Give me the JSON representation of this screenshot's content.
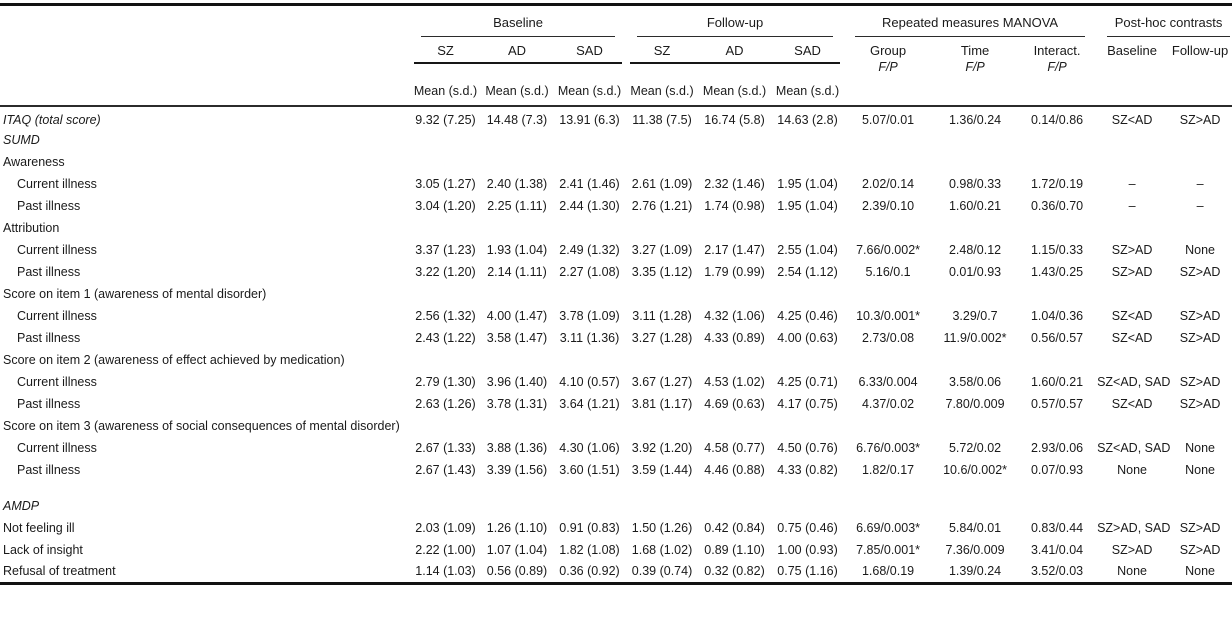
{
  "table": {
    "header": {
      "group_baseline": "Baseline",
      "group_followup": "Follow-up",
      "group_manova": "Repeated measures MANOVA",
      "group_posthoc": "Post-hoc contrasts",
      "baseline_cols": [
        "SZ",
        "AD",
        "SAD"
      ],
      "followup_cols": [
        "SZ",
        "AD",
        "SAD"
      ],
      "manova_cols": [
        "Group",
        "Time",
        "Interact."
      ],
      "manova_sub": "F/P",
      "posthoc_cols": [
        "Baseline",
        "Follow-up"
      ],
      "mean_sd": "Mean (s.d.)"
    },
    "rows": [
      {
        "label": "ITAQ (total score)",
        "italic": true,
        "cells": [
          "9.32 (7.25)",
          "14.48 (7.3)",
          "13.91 (6.3)",
          "11.38 (7.5)",
          "16.74 (5.8)",
          "14.63 (2.8)",
          "5.07/0.01",
          "1.36/0.24",
          "0.14/0.86",
          "SZ<AD",
          "SZ>AD"
        ]
      },
      {
        "label": "SUMD",
        "italic": true,
        "cells": []
      },
      {
        "label": "Awareness",
        "cells": []
      },
      {
        "label": "Current illness",
        "indent": true,
        "cells": [
          "3.05 (1.27)",
          "2.40 (1.38)",
          "2.41 (1.46)",
          "2.61 (1.09)",
          "2.32 (1.46)",
          "1.95 (1.04)",
          "2.02/0.14",
          "0.98/0.33",
          "1.72/0.19",
          "–",
          "–"
        ]
      },
      {
        "label": "Past illness",
        "indent": true,
        "cells": [
          "3.04 (1.20)",
          "2.25 (1.11)",
          "2.44 (1.30)",
          "2.76 (1.21)",
          "1.74 (0.98)",
          "1.95 (1.04)",
          "2.39/0.10",
          "1.60/0.21",
          "0.36/0.70",
          "–",
          "–"
        ]
      },
      {
        "label": "Attribution",
        "cells": []
      },
      {
        "label": "Current illness",
        "indent": true,
        "cells": [
          "3.37 (1.23)",
          "1.93 (1.04)",
          "2.49 (1.32)",
          "3.27 (1.09)",
          "2.17 (1.47)",
          "2.55 (1.04)",
          "7.66/0.002*",
          "2.48/0.12",
          "1.15/0.33",
          "SZ>AD",
          "None"
        ]
      },
      {
        "label": "Past illness",
        "indent": true,
        "cells": [
          "3.22 (1.20)",
          "2.14 (1.11)",
          "2.27 (1.08)",
          "3.35 (1.12)",
          "1.79 (0.99)",
          "2.54 (1.12)",
          "5.16/0.1",
          "0.01/0.93",
          "1.43/0.25",
          "SZ>AD",
          "SZ>AD"
        ]
      },
      {
        "label": "Score on item 1 (awareness of mental disorder)",
        "cells": []
      },
      {
        "label": "Current illness",
        "indent": true,
        "cells": [
          "2.56 (1.32)",
          "4.00 (1.47)",
          "3.78 (1.09)",
          "3.11 (1.28)",
          "4.32 (1.06)",
          "4.25 (0.46)",
          "10.3/0.001*",
          "3.29/0.7",
          "1.04/0.36",
          "SZ<AD",
          "SZ>AD"
        ]
      },
      {
        "label": "Past illness",
        "indent": true,
        "cells": [
          "2.43 (1.22)",
          "3.58 (1.47)",
          "3.11 (1.36)",
          "3.27 (1.28)",
          "4.33 (0.89)",
          "4.00 (0.63)",
          "2.73/0.08",
          "11.9/0.002*",
          "0.56/0.57",
          "SZ<AD",
          "SZ>AD"
        ]
      },
      {
        "label": "Score on item 2 (awareness of effect achieved by medication)",
        "cells": []
      },
      {
        "label": "Current illness",
        "indent": true,
        "cells": [
          "2.79 (1.30)",
          "3.96 (1.40)",
          "4.10 (0.57)",
          "3.67 (1.27)",
          "4.53 (1.02)",
          "4.25 (0.71)",
          "6.33/0.004",
          "3.58/0.06",
          "1.60/0.21",
          "SZ<AD, SAD",
          "SZ>AD"
        ]
      },
      {
        "label": "Past illness",
        "indent": true,
        "cells": [
          "2.63 (1.26)",
          "3.78 (1.31)",
          "3.64 (1.21)",
          "3.81 (1.17)",
          "4.69 (0.63)",
          "4.17 (0.75)",
          "4.37/0.02",
          "7.80/0.009",
          "0.57/0.57",
          "SZ<AD",
          "SZ>AD"
        ]
      },
      {
        "label": "Score on item 3 (awareness of social consequences of mental disorder)",
        "cells": []
      },
      {
        "label": "Current illness",
        "indent": true,
        "cells": [
          "2.67 (1.33)",
          "3.88 (1.36)",
          "4.30 (1.06)",
          "3.92 (1.20)",
          "4.58 (0.77)",
          "4.50 (0.76)",
          "6.76/0.003*",
          "5.72/0.02",
          "2.93/0.06",
          "SZ<AD, SAD",
          "None"
        ]
      },
      {
        "label": "Past illness",
        "indent": true,
        "cells": [
          "2.67 (1.43)",
          "3.39 (1.56)",
          "3.60 (1.51)",
          "3.59 (1.44)",
          "4.46 (0.88)",
          "4.33 (0.82)",
          "1.82/0.17",
          "10.6/0.002*",
          "0.07/0.93",
          "None",
          "None"
        ]
      },
      {
        "spacer": true
      },
      {
        "label": "AMDP",
        "italic": true,
        "cells": []
      },
      {
        "label": "Not feeling ill",
        "cells": [
          "2.03 (1.09)",
          "1.26 (1.10)",
          "0.91 (0.83)",
          "1.50 (1.26)",
          "0.42 (0.84)",
          "0.75 (0.46)",
          "6.69/0.003*",
          "5.84/0.01",
          "0.83/0.44",
          "SZ>AD, SAD",
          "SZ>AD"
        ]
      },
      {
        "label": "Lack of insight",
        "cells": [
          "2.22 (1.00)",
          "1.07 (1.04)",
          "1.82 (1.08)",
          "1.68 (1.02)",
          "0.89 (1.10)",
          "1.00 (0.93)",
          "7.85/0.001*",
          "7.36/0.009",
          "3.41/0.04",
          "SZ>AD",
          "SZ>AD"
        ]
      },
      {
        "label": "Refusal of treatment",
        "cells": [
          "1.14 (1.03)",
          "0.56 (0.89)",
          "0.36 (0.92)",
          "0.39 (0.74)",
          "0.32 (0.82)",
          "0.75 (1.16)",
          "1.68/0.19",
          "1.39/0.24",
          "3.52/0.03",
          "None",
          "None"
        ]
      }
    ]
  }
}
